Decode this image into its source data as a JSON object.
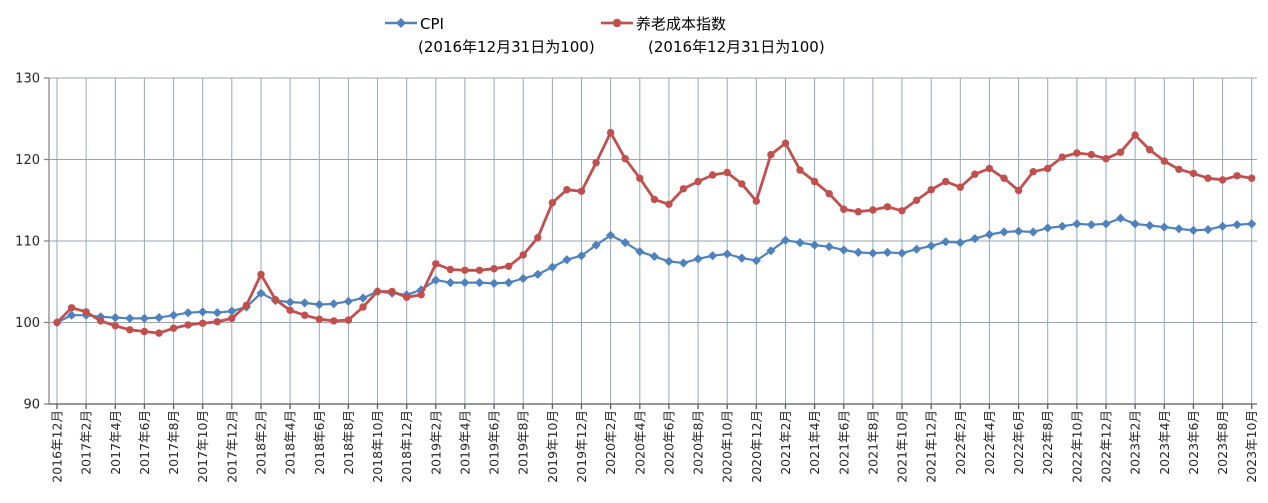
{
  "colors": {
    "cpi_blue": "#4F81BD",
    "pension_red": "#C0504D",
    "vertical_grid": "#8FA9BD",
    "horizontal_grid": "#9AA4AC",
    "x_axis_line": "#595959",
    "y_axis_line": "#808080",
    "tick_text": "#262626"
  },
  "chart_data": {
    "type": "line",
    "title": "",
    "legend_position": "top",
    "grid": {
      "vertical": true,
      "horizontal": true
    },
    "y_axis": {
      "min": 90,
      "max": 130,
      "ticks": [
        90,
        100,
        110,
        120,
        130
      ]
    },
    "x_axis": {
      "n_points": 83,
      "points_per_label": 2,
      "tick_labels": [
        "2016年12月",
        "2017年2月",
        "2017年4月",
        "2017年6月",
        "2017年8月",
        "2017年10月",
        "2017年12月",
        "2018年2月",
        "2018年4月",
        "2018年6月",
        "2018年8月",
        "2018年10月",
        "2018年12月",
        "2019年2月",
        "2019年4月",
        "2019年6月",
        "2019年8月",
        "2019年10月",
        "2019年12月",
        "2020年2月",
        "2020年4月",
        "2020年6月",
        "2020年8月",
        "2020年10月",
        "2020年12月",
        "2021年2月",
        "2021年4月",
        "2021年6月",
        "2021年8月",
        "2021年10月",
        "2021年12月",
        "2022年2月",
        "2022年4月",
        "2022年6月",
        "2022年8月",
        "2022年10月",
        "2022年12月",
        "2023年2月",
        "2023年4月",
        "2023年6月",
        "2023年8月",
        "2023年10月"
      ]
    },
    "series": [
      {
        "name": "CPI",
        "subtitle": "(2016年12月31日为100)",
        "color": "#4F81BD",
        "marker": "diamond",
        "values": [
          100.0,
          100.9,
          100.9,
          100.7,
          100.6,
          100.5,
          100.5,
          100.6,
          100.9,
          101.2,
          101.3,
          101.2,
          101.4,
          101.9,
          103.6,
          102.7,
          102.5,
          102.4,
          102.2,
          102.3,
          102.6,
          103.0,
          103.8,
          103.6,
          103.4,
          104.0,
          105.2,
          104.9,
          104.9,
          104.9,
          104.8,
          104.9,
          105.4,
          105.9,
          106.8,
          107.7,
          108.2,
          109.5,
          110.7,
          109.8,
          108.7,
          108.1,
          107.5,
          107.3,
          107.8,
          108.2,
          108.4,
          107.9,
          107.6,
          108.8,
          110.1,
          109.8,
          109.5,
          109.3,
          108.9,
          108.6,
          108.5,
          108.6,
          108.5,
          109.0,
          109.4,
          109.9,
          109.8,
          110.3,
          110.8,
          111.1,
          111.2,
          111.1,
          111.6,
          111.8,
          112.1,
          112.0,
          112.1,
          112.8,
          112.1,
          111.9,
          111.7,
          111.5,
          111.3,
          111.4,
          111.8,
          112.0,
          112.1
        ]
      },
      {
        "name": "养老成本指数",
        "subtitle": "(2016年12月31日为100)",
        "color": "#C0504D",
        "marker": "circle",
        "values": [
          100.0,
          101.8,
          101.3,
          100.2,
          99.6,
          99.1,
          98.9,
          98.7,
          99.3,
          99.7,
          99.9,
          100.1,
          100.5,
          102.1,
          105.9,
          102.8,
          101.5,
          100.9,
          100.4,
          100.2,
          100.3,
          101.9,
          103.8,
          103.8,
          103.1,
          103.4,
          107.2,
          106.5,
          106.4,
          106.4,
          106.6,
          106.9,
          108.3,
          110.4,
          114.7,
          116.3,
          116.1,
          119.6,
          123.3,
          120.1,
          117.7,
          115.1,
          114.5,
          116.4,
          117.3,
          118.1,
          118.4,
          117.0,
          114.9,
          120.6,
          122.0,
          118.7,
          117.3,
          115.8,
          113.9,
          113.6,
          113.8,
          114.2,
          113.7,
          115.0,
          116.3,
          117.3,
          116.6,
          118.2,
          118.9,
          117.7,
          116.2,
          118.5,
          118.9,
          120.3,
          120.8,
          120.6,
          120.1,
          120.9,
          123.0,
          121.2,
          119.8,
          118.8,
          118.3,
          117.7,
          117.5,
          118.0,
          117.7
        ]
      }
    ]
  }
}
